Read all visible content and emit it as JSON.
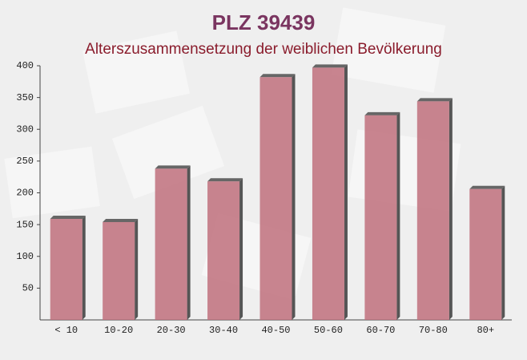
{
  "chart_data": {
    "type": "bar",
    "title": "PLZ 39439",
    "subtitle": "Alterszusammensetzung der weiblichen Bevölkerung",
    "categories": [
      "< 10",
      "10-20",
      "20-30",
      "30-40",
      "40-50",
      "50-60",
      "60-70",
      "70-80",
      "80+"
    ],
    "values": [
      159,
      154,
      238,
      218,
      382,
      397,
      322,
      344,
      206
    ],
    "color": "#c0707c",
    "ylim": [
      0,
      400
    ],
    "yticks": [
      50,
      100,
      150,
      200,
      250,
      300,
      350,
      400
    ],
    "grid": false
  }
}
